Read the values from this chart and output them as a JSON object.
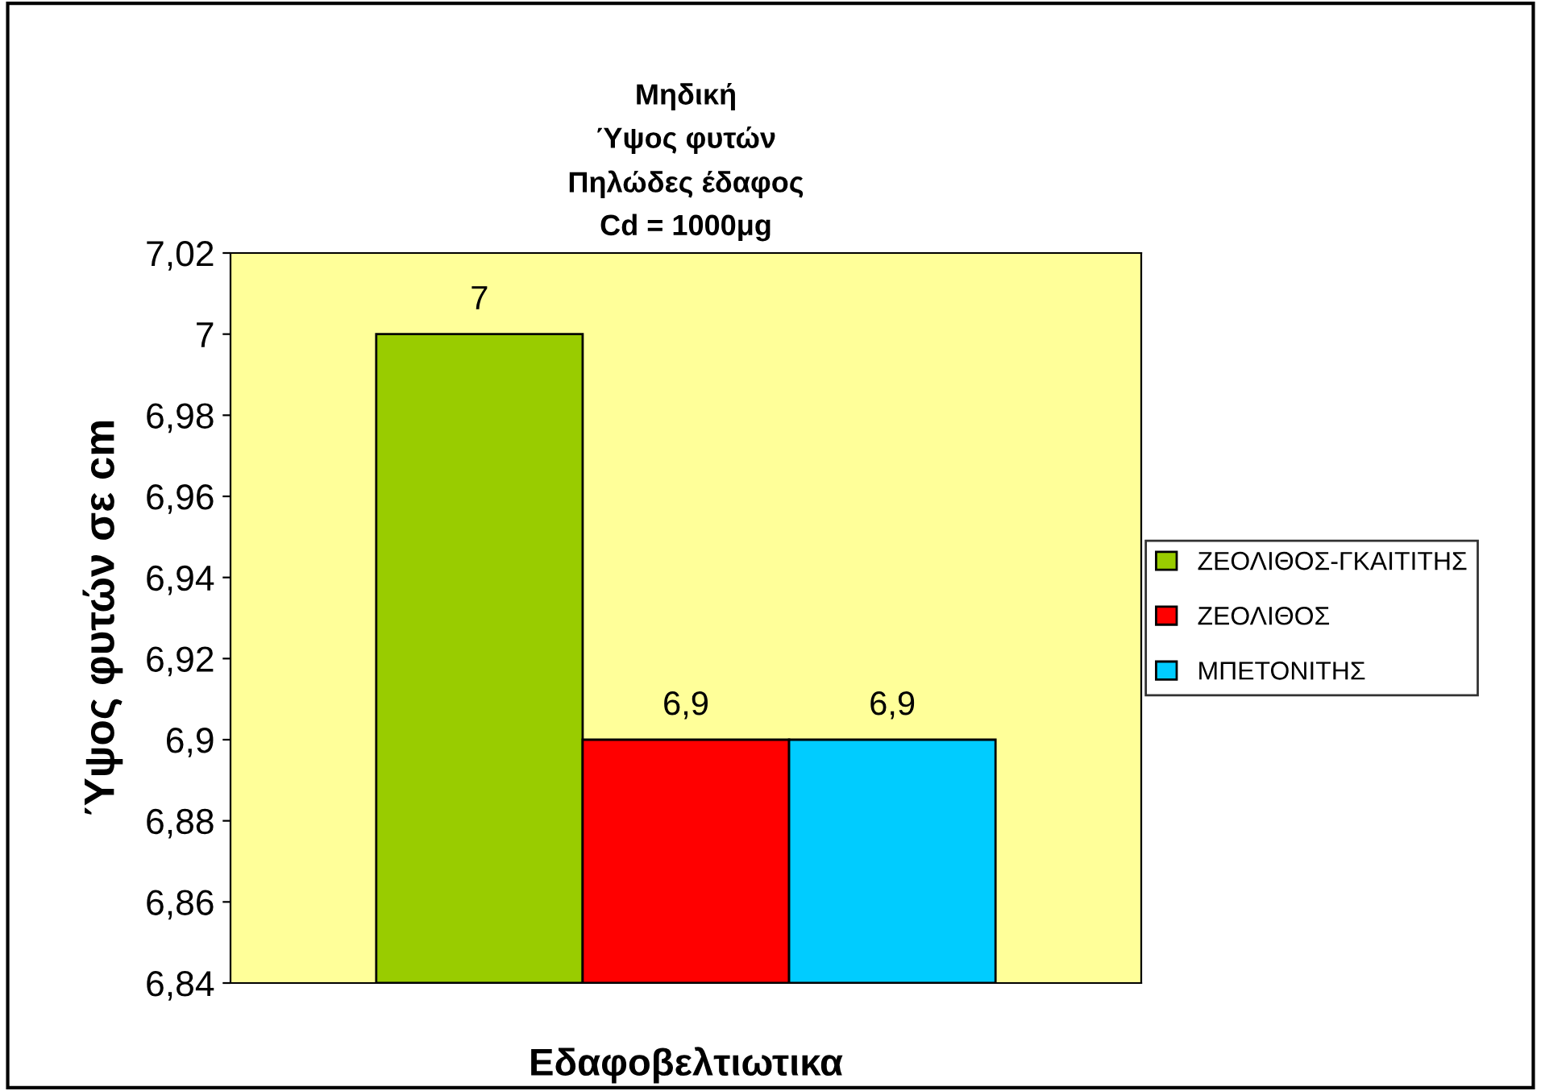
{
  "chart_data": {
    "type": "bar",
    "title": "Μηδική\nΎψος φυτών\nΠηλώδες έδαφος\nCd = 1000μg",
    "xlabel": "Εδαφοβελτιωτικα",
    "ylabel": "Ύψος φυτών σε cm",
    "categories": [
      null
    ],
    "series": [
      {
        "name": "ΖΕΟΛΙΘΟΣ-ΓΚΑΙΤΙΤΗΣ",
        "color": "#99cc00",
        "values": [
          7
        ],
        "value_labels": [
          "7"
        ]
      },
      {
        "name": "ΖΕΟΛΙΘΟΣ",
        "color": "#ff0000",
        "values": [
          6.9
        ],
        "value_labels": [
          "6,9"
        ]
      },
      {
        "name": "ΜΠΕΤΟΝΙΤΗΣ",
        "color": "#00ccff",
        "values": [
          6.9
        ],
        "value_labels": [
          "6,9"
        ]
      }
    ],
    "ylim": [
      6.84,
      7.02
    ],
    "yticks": [
      {
        "value": 6.84,
        "label": "6,84"
      },
      {
        "value": 6.86,
        "label": "6,86"
      },
      {
        "value": 6.88,
        "label": "6,88"
      },
      {
        "value": 6.9,
        "label": "6,9"
      },
      {
        "value": 6.92,
        "label": "6,92"
      },
      {
        "value": 6.94,
        "label": "6,94"
      },
      {
        "value": 6.96,
        "label": "6,96"
      },
      {
        "value": 6.98,
        "label": "6,98"
      },
      {
        "value": 7,
        "label": "7"
      },
      {
        "value": 7.02,
        "label": "7,02"
      }
    ],
    "grid": false,
    "legend": "right"
  }
}
